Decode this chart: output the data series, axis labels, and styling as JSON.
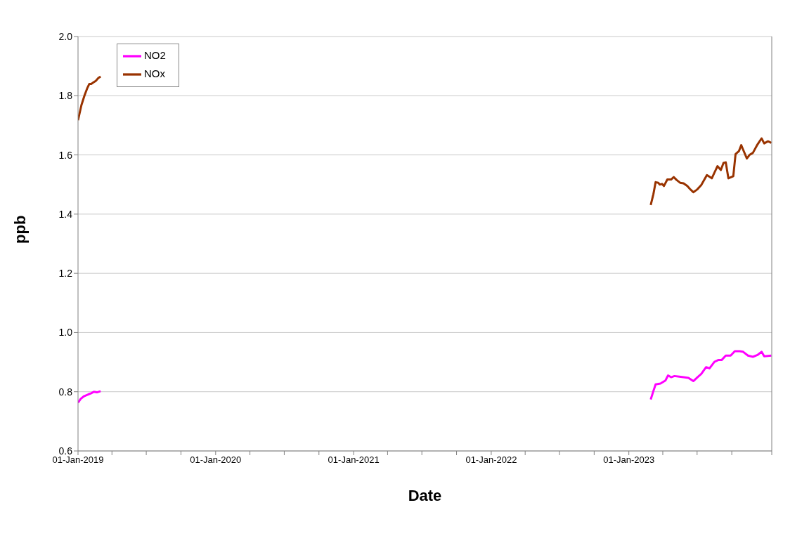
{
  "chart_data": {
    "type": "line",
    "xlabel": "Date",
    "ylabel": "ppb",
    "xlim": [
      "2019-01-01",
      "2024-01-15"
    ],
    "xticks": [
      {
        "value": "2019-01-01",
        "label": "01-Jan-2019"
      },
      {
        "value": "2019-04-01",
        "label": null
      },
      {
        "value": "2019-07-01",
        "label": null
      },
      {
        "value": "2019-10-01",
        "label": null
      },
      {
        "value": "2020-01-01",
        "label": "01-Jan-2020"
      },
      {
        "value": "2020-04-01",
        "label": null
      },
      {
        "value": "2020-07-01",
        "label": null
      },
      {
        "value": "2020-10-01",
        "label": null
      },
      {
        "value": "2021-01-01",
        "label": "01-Jan-2021"
      },
      {
        "value": "2021-04-01",
        "label": null
      },
      {
        "value": "2021-07-01",
        "label": null
      },
      {
        "value": "2021-10-01",
        "label": null
      },
      {
        "value": "2022-01-01",
        "label": "01-Jan-2022"
      },
      {
        "value": "2022-04-01",
        "label": null
      },
      {
        "value": "2022-07-01",
        "label": null
      },
      {
        "value": "2022-10-01",
        "label": null
      },
      {
        "value": "2023-01-01",
        "label": "01-Jan-2023"
      },
      {
        "value": "2023-04-01",
        "label": null
      },
      {
        "value": "2023-07-01",
        "label": null
      },
      {
        "value": "2023-10-01",
        "label": null
      },
      {
        "value": "2024-01-15",
        "label": null
      }
    ],
    "ylim": [
      0.6,
      2.0
    ],
    "yticks": [
      {
        "value": 0.6,
        "label": "0.6"
      },
      {
        "value": 0.8,
        "label": "0.8"
      },
      {
        "value": 1.0,
        "label": "1.0"
      },
      {
        "value": 1.2,
        "label": "1.2"
      },
      {
        "value": 1.4,
        "label": "1.4"
      },
      {
        "value": 1.6,
        "label": "1.6"
      },
      {
        "value": 1.8,
        "label": "1.8"
      },
      {
        "value": 2.0,
        "label": "2.0"
      }
    ],
    "grid": "y",
    "legend": "top left",
    "marker": "none",
    "line_style": "solid",
    "series": [
      {
        "name": "NOx",
        "color": "#993300",
        "x": [
          "2019-01-01",
          "2019-01-10",
          "2019-01-18",
          "2019-01-25",
          "2019-01-31",
          "2019-02-05",
          "2019-02-11",
          "2019-02-17",
          "2019-02-24",
          "2019-03-02",
          "2021-01-01",
          "2023-02-28",
          "2023-03-07",
          "2023-03-13",
          "2023-03-20",
          "2023-03-24",
          "2023-03-30",
          "2023-04-04",
          "2023-04-13",
          "2023-04-23",
          "2023-04-30",
          "2023-05-08",
          "2023-05-17",
          "2023-05-26",
          "2023-06-05",
          "2023-06-12",
          "2023-06-21",
          "2023-07-01",
          "2023-07-12",
          "2023-07-27",
          "2023-08-09",
          "2023-08-24",
          "2023-09-02",
          "2023-09-09",
          "2023-09-15",
          "2023-09-22",
          "2023-10-05",
          "2023-10-11",
          "2023-10-20",
          "2023-10-26",
          "2023-10-31",
          "2023-11-10",
          "2023-11-17",
          "2023-11-26",
          "2023-12-08",
          "2023-12-19",
          "2023-12-26",
          "2024-01-05",
          "2024-01-14"
        ],
        "values": [
          1.717,
          1.768,
          1.8,
          1.824,
          1.84,
          1.84,
          1.845,
          1.85,
          1.86,
          1.865,
          null,
          1.431,
          1.467,
          1.508,
          1.506,
          1.5,
          1.502,
          1.495,
          1.517,
          1.517,
          1.525,
          1.515,
          1.506,
          1.504,
          1.495,
          1.485,
          1.474,
          1.483,
          1.498,
          1.532,
          1.521,
          1.562,
          1.549,
          1.573,
          1.575,
          1.521,
          1.528,
          1.603,
          1.613,
          1.633,
          1.618,
          1.588,
          1.6,
          1.607,
          1.635,
          1.656,
          1.639,
          1.646,
          1.641
        ]
      },
      {
        "name": "NO2",
        "color": "#ff00ff",
        "x": [
          "2019-01-01",
          "2019-01-08",
          "2019-01-17",
          "2019-01-28",
          "2019-02-05",
          "2019-02-12",
          "2019-02-20",
          "2019-03-02",
          "2021-01-01",
          "2023-02-28",
          "2023-03-07",
          "2023-03-13",
          "2023-03-26",
          "2023-04-08",
          "2023-04-15",
          "2023-04-23",
          "2023-05-02",
          "2023-05-15",
          "2023-05-26",
          "2023-06-08",
          "2023-06-21",
          "2023-07-02",
          "2023-07-12",
          "2023-07-25",
          "2023-08-03",
          "2023-08-16",
          "2023-08-26",
          "2023-09-04",
          "2023-09-15",
          "2023-09-28",
          "2023-10-09",
          "2023-10-22",
          "2023-10-31",
          "2023-11-13",
          "2023-11-26",
          "2023-12-08",
          "2023-12-19",
          "2023-12-26",
          "2024-01-14"
        ],
        "values": [
          0.763,
          0.776,
          0.785,
          0.791,
          0.795,
          0.8,
          0.798,
          0.802,
          null,
          0.774,
          0.802,
          0.825,
          0.828,
          0.838,
          0.855,
          0.849,
          0.853,
          0.851,
          0.849,
          0.847,
          0.836,
          0.849,
          0.86,
          0.883,
          0.879,
          0.901,
          0.907,
          0.907,
          0.922,
          0.922,
          0.937,
          0.937,
          0.935,
          0.922,
          0.918,
          0.924,
          0.935,
          0.92,
          0.922
        ]
      }
    ]
  }
}
